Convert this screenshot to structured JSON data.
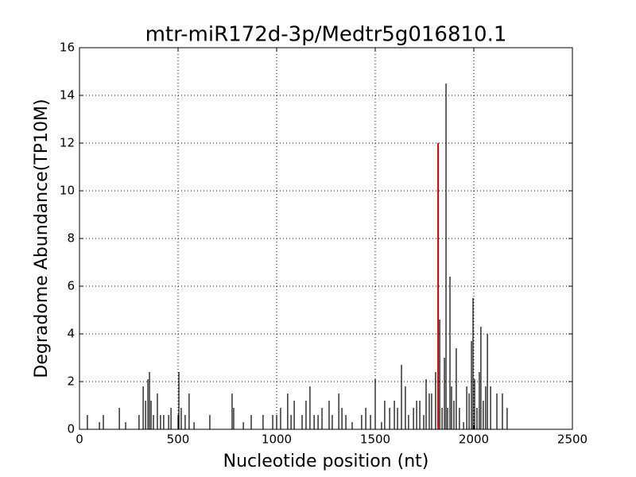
{
  "chart_data": {
    "type": "stem",
    "title": "mtr-miR172d-3p/Medtr5g016810.1",
    "x_label": "Nucleotide position (nt)",
    "y_label": "Degradome Abundance(TP10M)",
    "xlim": [
      0,
      2500
    ],
    "xticks": [
      0,
      500,
      1000,
      1500,
      2000,
      2500
    ],
    "ylim": [
      0,
      16
    ],
    "yticks": [
      0,
      2,
      4,
      6,
      8,
      10,
      12,
      14,
      16
    ],
    "grid": true,
    "series": [
      {
        "color": "#000000",
        "x": [
          40,
          101,
          121,
          202,
          234,
          302,
          323,
          335,
          347,
          355,
          363,
          375,
          395,
          411,
          427,
          452,
          464,
          500,
          504,
          516,
          536,
          556,
          581,
          661,
          774,
          782,
          831,
          871,
          931,
          980,
          1000,
          1020,
          1056,
          1073,
          1089,
          1129,
          1149,
          1169,
          1190,
          1210,
          1230,
          1266,
          1282,
          1315,
          1331,
          1351,
          1383,
          1431,
          1452,
          1476,
          1500,
          1532,
          1548,
          1573,
          1597,
          1613,
          1633,
          1653,
          1669,
          1694,
          1710,
          1726,
          1746,
          1758,
          1774,
          1786,
          1806,
          1827,
          1839,
          1851,
          1859,
          1867,
          1879,
          1887,
          1899,
          1911,
          1927,
          1948,
          1964,
          1976,
          1988,
          1996,
          2004,
          2016,
          2028,
          2036,
          2048,
          2060,
          2069,
          2085,
          2117,
          2145,
          2169
        ],
        "values": [
          0.6,
          0.3,
          0.6,
          0.9,
          0.3,
          0.6,
          1.8,
          1.2,
          2.1,
          2.4,
          1.2,
          0.6,
          1.5,
          0.6,
          0.6,
          0.6,
          0.9,
          0.6,
          2.4,
          0.9,
          0.6,
          1.5,
          0.3,
          0.6,
          1.5,
          0.9,
          0.3,
          0.6,
          0.6,
          0.6,
          0.6,
          0.9,
          1.5,
          0.6,
          1.2,
          0.6,
          1.2,
          1.8,
          0.6,
          0.6,
          0.9,
          1.2,
          0.6,
          1.5,
          0.9,
          0.6,
          0.3,
          0.6,
          0.9,
          0.6,
          2.1,
          0.3,
          1.2,
          0.9,
          1.2,
          0.9,
          2.7,
          1.8,
          0.6,
          0.9,
          1.2,
          1.2,
          0.6,
          2.1,
          1.5,
          1.5,
          2.4,
          4.6,
          0.9,
          3.0,
          14.5,
          0.9,
          6.4,
          1.8,
          1.2,
          3.4,
          0.9,
          0.3,
          1.8,
          1.5,
          3.7,
          5.5,
          2.1,
          0.9,
          2.4,
          4.3,
          1.2,
          1.8,
          4.0,
          1.8,
          1.5,
          1.5,
          0.9
        ]
      },
      {
        "color": "#cc0000",
        "x": [
          1819
        ],
        "values": [
          12.0
        ]
      }
    ]
  }
}
